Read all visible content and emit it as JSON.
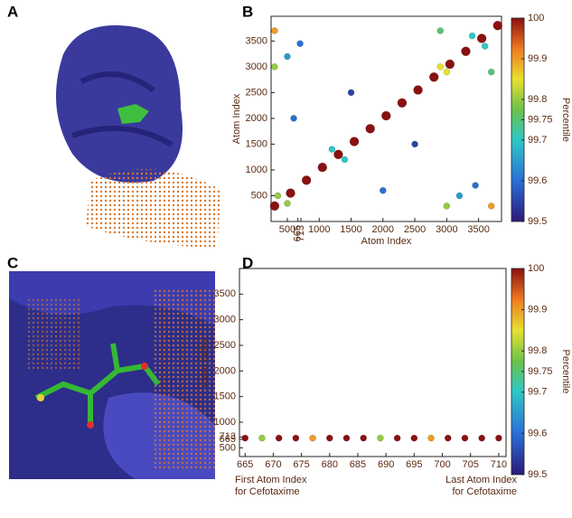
{
  "panel_labels": [
    "A",
    "B",
    "C",
    "D"
  ],
  "chart_data": [
    {
      "type": "scatter",
      "xlabel": "Atom Index",
      "ylabel": "Atom Index",
      "xlim": [
        245,
        3860
      ],
      "ylim": [
        0,
        3980
      ],
      "xticks": [
        500,
        1000,
        1500,
        2000,
        2500,
        3000,
        3500
      ],
      "xticks_rotated": [
        665,
        713
      ],
      "yticks": [
        500,
        1000,
        1500,
        2000,
        2500,
        3000,
        3500
      ],
      "x": [
        300,
        550,
        800,
        1050,
        1300,
        1550,
        1800,
        2050,
        2300,
        2550,
        2800,
        3050,
        3300,
        3550,
        3800,
        300,
        3700,
        350,
        500,
        2900,
        3000,
        300,
        3000,
        1200,
        1400,
        2900,
        3700,
        3400,
        3600,
        700,
        3450,
        1500,
        2500,
        2000,
        600,
        3200,
        500
      ],
      "y": [
        300,
        550,
        800,
        1050,
        1300,
        1550,
        1800,
        2050,
        2300,
        2550,
        2800,
        3050,
        3300,
        3550,
        3800,
        3700,
        300,
        500,
        350,
        3000,
        2900,
        3000,
        300,
        1400,
        1200,
        3700,
        2900,
        3600,
        3400,
        3450,
        700,
        2500,
        1500,
        600,
        2000,
        500,
        3200
      ],
      "values": [
        100,
        100,
        100,
        100,
        100,
        100,
        100,
        100,
        100,
        100,
        100,
        100,
        100,
        100,
        100,
        99.9,
        99.9,
        99.8,
        99.8,
        99.85,
        99.85,
        99.8,
        99.8,
        99.7,
        99.7,
        99.75,
        99.75,
        99.7,
        99.7,
        99.6,
        99.6,
        99.55,
        99.55,
        99.6,
        99.6,
        99.65,
        99.65
      ],
      "colorbar": {
        "label": "Percentile",
        "lim": [
          99.5,
          100
        ],
        "ticks": [
          99.5,
          99.6,
          99.7,
          99.75,
          99.8,
          99.9,
          100
        ]
      }
    },
    {
      "type": "scatter",
      "ylabel": "Atom Index",
      "x_note_left": [
        "First Atom Index",
        "for Cefotaxime"
      ],
      "x_note_right": [
        "Last Atom Index",
        "for Cefotaxime"
      ],
      "xlim": [
        664,
        711.3
      ],
      "ylim": [
        330,
        4000
      ],
      "xticks": [
        665,
        670,
        675,
        680,
        685,
        690,
        695,
        700,
        705,
        710
      ],
      "yticks": [
        500,
        665,
        713,
        1000,
        1500,
        2000,
        2500,
        3000,
        3500
      ],
      "x": [
        665,
        668,
        671,
        674,
        677,
        680,
        683,
        686,
        689,
        692,
        695,
        698,
        701,
        704,
        707,
        710
      ],
      "y": [
        690,
        690,
        690,
        690,
        690,
        690,
        690,
        690,
        690,
        690,
        690,
        690,
        690,
        690,
        690,
        690
      ],
      "values": [
        100,
        99.8,
        100,
        100,
        99.9,
        100,
        100,
        100,
        99.8,
        100,
        100,
        99.9,
        100,
        100,
        100,
        100
      ],
      "colorbar": {
        "label": "Percentile",
        "lim": [
          99.5,
          100
        ],
        "ticks": [
          99.5,
          99.6,
          99.7,
          99.75,
          99.8,
          99.9,
          100
        ]
      }
    }
  ]
}
